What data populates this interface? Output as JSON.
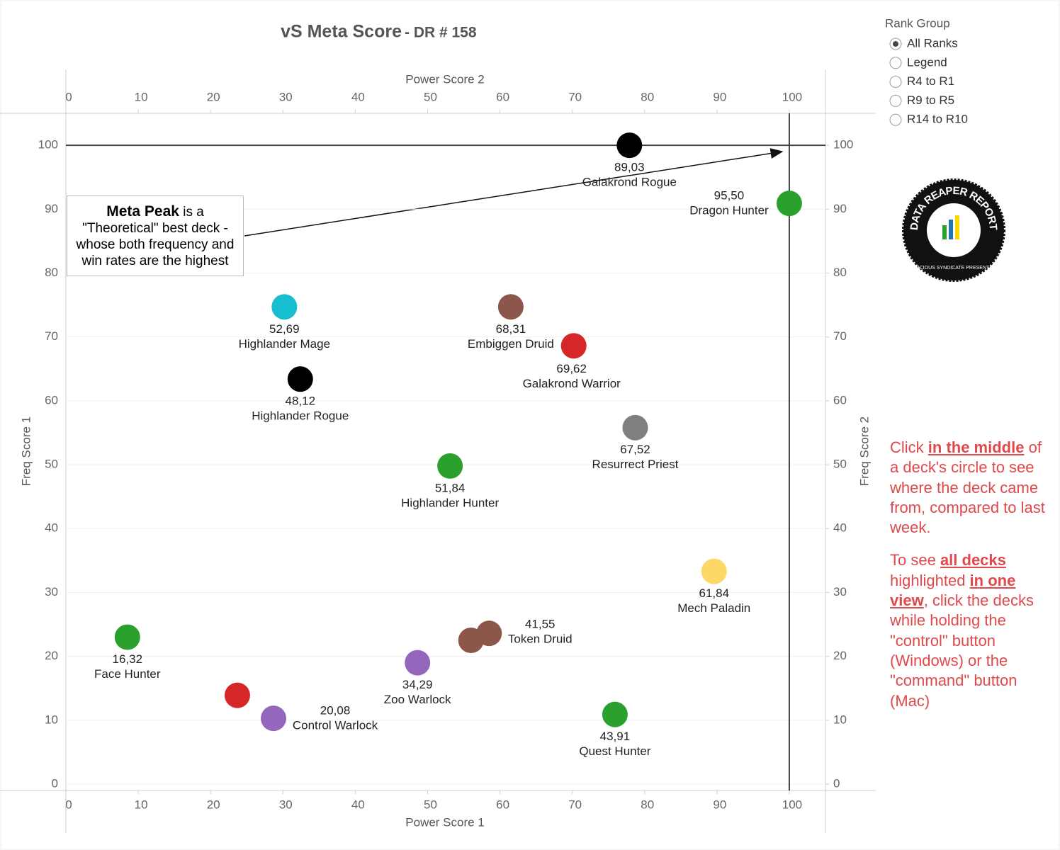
{
  "chart_data": {
    "type": "scatter",
    "title": "vS Meta Score",
    "subtitle": "- DR # 158",
    "x_label": "Power Score 1",
    "x2_label": "Power Score 2",
    "y_label": "Freq Score 1",
    "y2_label": "Freq Score 2",
    "xlim": [
      0,
      105
    ],
    "xticks": [
      0,
      10,
      20,
      30,
      40,
      50,
      60,
      70,
      80,
      90,
      100
    ],
    "x2lim": [
      0,
      105
    ],
    "x2ticks": [
      0,
      10,
      20,
      30,
      40,
      50,
      60,
      70,
      80,
      90,
      100
    ],
    "ylim": [
      -1,
      105
    ],
    "yticks": [
      0,
      10,
      20,
      30,
      40,
      50,
      60,
      70,
      80,
      90,
      100
    ],
    "y2lim": [
      -1,
      105
    ],
    "y2ticks": [
      0,
      10,
      20,
      30,
      40,
      50,
      60,
      70,
      80,
      90,
      100
    ],
    "grid": true,
    "peak_x": 100,
    "peak_y": 100,
    "names": [
      "Galakrond Rogue",
      "Dragon Hunter",
      "Highlander Mage",
      "Embiggen Druid",
      "Galakrond Warrior",
      "Highlander Rogue",
      "Resurrect Priest",
      "Highlander Hunter",
      "Mech Paladin",
      "Face Hunter",
      "Token Druid",
      null,
      "Zoo Warlock",
      null,
      "Control Warlock",
      "Quest Hunter"
    ],
    "score_labels": [
      "89,03",
      "95,50",
      "52,69",
      "68,31",
      "69,62",
      "48,12",
      "67,52",
      "51,84",
      "61,84",
      "16,32",
      "41,55",
      null,
      "34,29",
      null,
      "20,08",
      "43,91"
    ],
    "x": [
      77.9,
      100,
      30.2,
      61.5,
      70.2,
      32.4,
      78.7,
      53.1,
      89.6,
      8.5,
      58.5,
      56.0,
      48.6,
      23.7,
      28.7,
      75.9
    ],
    "values": [
      100,
      90.9,
      74.7,
      74.7,
      68.6,
      63.4,
      55.8,
      49.8,
      33.3,
      23.0,
      23.6,
      22.5,
      19.0,
      13.9,
      10.3,
      10.9
    ],
    "colors": [
      "#000000",
      "#2ca02c",
      "#17becf",
      "#8c564b",
      "#d62728",
      "#000000",
      "#7f7f7f",
      "#2ca02c",
      "#fdd866",
      "#2ca02c",
      "#8c564b",
      "#8c564b",
      "#9467bd",
      "#d62728",
      "#9467bd",
      "#2ca02c"
    ],
    "annotation_bold": "Meta Peak",
    "annotation_text": " is a \"Theoretical\" best deck - whose both frequency and win rates are the highest"
  },
  "filter": {
    "title": "Rank Group",
    "options": [
      "All Ranks",
      "Legend",
      "R4 to R1",
      "R9 to R5",
      "R14 to R10"
    ],
    "selected": 0
  },
  "logo": {
    "text": "DATA REAPER REPORT",
    "subtext": "VICIOUS SYNDICATE PRESENTS"
  },
  "help": [
    [
      "Click ",
      "in the middle",
      " of a deck's circle to see where the deck came from, compared to last week."
    ],
    [
      "To see ",
      "all decks ",
      "highlighted ",
      "in one view",
      ", click the decks while holding the \"control\" button (Windows) or the \"command\" button (Mac)"
    ]
  ]
}
